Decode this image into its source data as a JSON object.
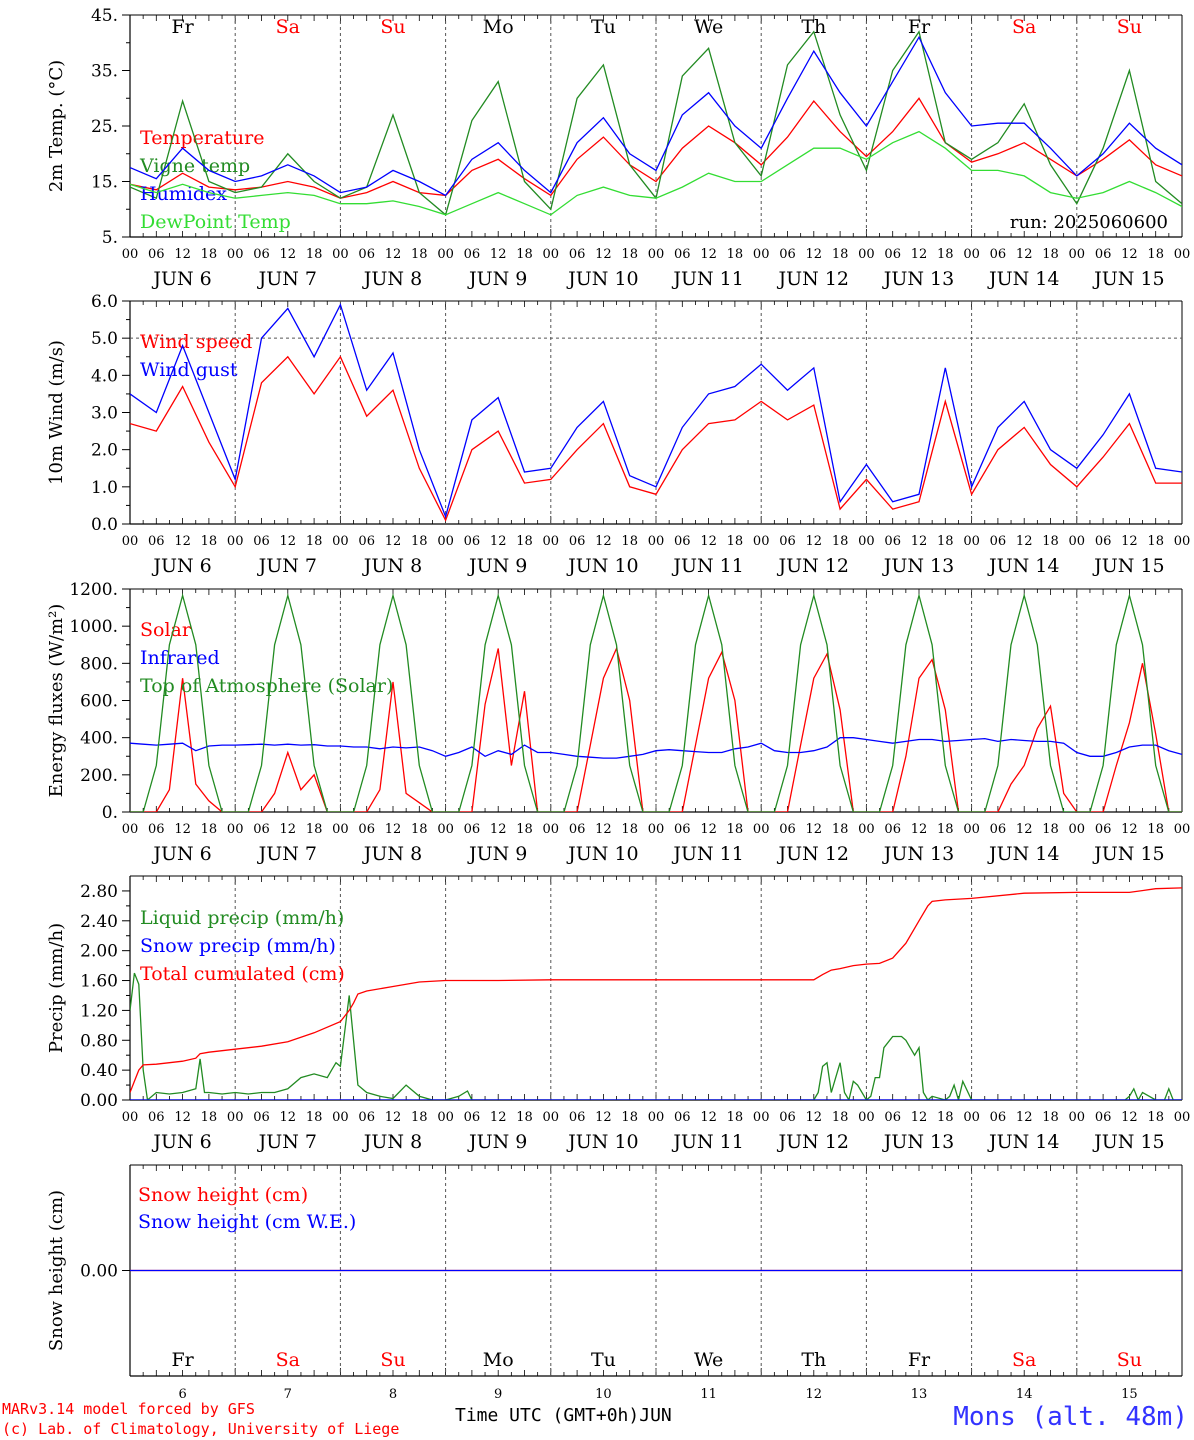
{
  "footer": {
    "model_line": "MARv3.14 model forced by GFS",
    "copyright_line": "(c) Lab. of Climatology, University of Liege",
    "time_axis_label": "Time UTC (GMT+0h)",
    "month_label": "JUN",
    "station": "Mons (alt. 48m)"
  },
  "run_label": "run: 2025060600",
  "colors": {
    "red": "#ff0000",
    "green": "#228b22",
    "blue": "#0000ff",
    "lightgreen": "#33dd33",
    "black": "#000000"
  },
  "time_axis": {
    "hour_ticks": [
      "00",
      "06",
      "12",
      "18"
    ],
    "end_tick": "00",
    "day_labels": [
      "JUN  6",
      "JUN  7",
      "JUN  8",
      "JUN  9",
      "JUN 10",
      "JUN 11",
      "JUN 12",
      "JUN 13",
      "JUN 14",
      "JUN 15"
    ],
    "weekdays": [
      "Fr",
      "Sa",
      "Su",
      "Mo",
      "Tu",
      "We",
      "Th",
      "Fr",
      "Sa",
      "Su"
    ],
    "weekend_flags": [
      false,
      true,
      true,
      false,
      false,
      false,
      false,
      false,
      true,
      true
    ],
    "day_numbers": [
      "6",
      "7",
      "8",
      "9",
      "10",
      "11",
      "12",
      "13",
      "14",
      "15"
    ]
  },
  "chart_data": [
    {
      "type": "line",
      "ylabel": "2m Temp. (°C)",
      "ylim": [
        5,
        45
      ],
      "ytick_values": [
        5,
        15,
        25,
        35,
        45
      ],
      "ytick_labels": [
        "5.",
        "15.",
        "25.",
        "35.",
        "45."
      ],
      "x_hours": [
        0,
        6,
        12,
        18,
        24,
        30,
        36,
        42,
        48,
        54,
        60,
        66,
        72,
        78,
        84,
        90,
        96,
        102,
        108,
        114,
        120,
        126,
        132,
        138,
        144,
        150,
        156,
        162,
        168,
        174,
        180,
        186,
        192,
        198,
        204,
        210,
        216,
        222,
        228,
        234,
        240
      ],
      "series": [
        {
          "name": "Temperature",
          "color": "red",
          "values": [
            14.5,
            13.5,
            16.5,
            14,
            13.5,
            14,
            15,
            14,
            12,
            13,
            15,
            13,
            12.5,
            17,
            19,
            15.5,
            12.5,
            19,
            23,
            18,
            15,
            21,
            25,
            22,
            18,
            23,
            29.5,
            24,
            19.5,
            24,
            30,
            22,
            18.5,
            20,
            22,
            19,
            16,
            19,
            22.5,
            18,
            16
          ]
        },
        {
          "name": "Vigne temp",
          "color": "green",
          "values": [
            14,
            12,
            29.5,
            15,
            13,
            14,
            20,
            15,
            12,
            14,
            27,
            13,
            9,
            26,
            33,
            15,
            10,
            30,
            36,
            18,
            12,
            34,
            39,
            22,
            16,
            36,
            42,
            27,
            17,
            35,
            42,
            22,
            19,
            22,
            29,
            18,
            11,
            21,
            35,
            15,
            11
          ]
        },
        {
          "name": "Humidex",
          "color": "blue",
          "values": [
            17.5,
            15.5,
            21,
            17,
            15,
            16,
            18,
            16,
            13,
            14,
            17,
            15,
            12.5,
            19,
            22,
            17,
            13,
            22,
            26.5,
            20,
            17,
            27,
            31,
            25,
            21,
            30,
            38.5,
            31,
            25,
            33,
            41,
            31,
            25,
            25.5,
            25.5,
            21,
            16,
            20,
            25.5,
            21,
            18
          ]
        },
        {
          "name": "DewPoint Temp",
          "color": "lightgreen",
          "values": [
            14.5,
            13,
            14.5,
            13,
            12,
            12.5,
            13,
            12.5,
            11,
            11,
            11.5,
            10.5,
            9,
            11,
            13,
            11,
            9,
            12.5,
            14,
            12.5,
            12,
            14,
            16.5,
            15,
            15,
            18,
            21,
            21,
            19,
            22,
            24,
            21,
            17,
            17,
            16,
            13,
            12,
            13,
            15,
            13,
            10.5
          ]
        }
      ]
    },
    {
      "type": "line",
      "ylabel": "10m Wind (m/s)",
      "ylim": [
        0,
        6
      ],
      "ytick_values": [
        0,
        1,
        2,
        3,
        4,
        5,
        6
      ],
      "ytick_labels": [
        "0.0",
        "1.0",
        "2.0",
        "3.0",
        "4.0",
        "5.0",
        "6.0"
      ],
      "reference_line": 5,
      "x_hours": [
        0,
        6,
        12,
        18,
        24,
        30,
        36,
        42,
        48,
        54,
        60,
        66,
        72,
        78,
        84,
        90,
        96,
        102,
        108,
        114,
        120,
        126,
        132,
        138,
        144,
        150,
        156,
        162,
        168,
        174,
        180,
        186,
        192,
        198,
        204,
        210,
        216,
        222,
        228,
        234,
        240
      ],
      "series": [
        {
          "name": "Wind speed",
          "color": "red",
          "values": [
            2.7,
            2.5,
            3.7,
            2.2,
            1.0,
            3.8,
            4.5,
            3.5,
            4.5,
            2.9,
            3.6,
            1.5,
            0.1,
            2.0,
            2.5,
            1.1,
            1.2,
            2.0,
            2.7,
            1.0,
            0.8,
            2.0,
            2.7,
            2.8,
            3.3,
            2.8,
            3.2,
            0.4,
            1.2,
            0.4,
            0.6,
            3.3,
            0.8,
            2.0,
            2.6,
            1.6,
            1.0,
            1.8,
            2.7,
            1.1,
            1.1
          ]
        },
        {
          "name": "Wind gust",
          "color": "blue",
          "values": [
            3.5,
            3.0,
            4.8,
            3.0,
            1.2,
            5.0,
            5.8,
            4.5,
            5.9,
            3.6,
            4.6,
            2.0,
            0.2,
            2.8,
            3.4,
            1.4,
            1.5,
            2.6,
            3.3,
            1.3,
            1.0,
            2.6,
            3.5,
            3.7,
            4.3,
            3.6,
            4.2,
            0.6,
            1.6,
            0.6,
            0.8,
            4.2,
            1.0,
            2.6,
            3.3,
            2.0,
            1.5,
            2.4,
            3.5,
            1.5,
            1.4
          ]
        }
      ]
    },
    {
      "type": "line",
      "ylabel": "Energy fluxes (W/m²)",
      "ylim": [
        0,
        1200
      ],
      "ytick_values": [
        0,
        200,
        400,
        600,
        800,
        1000,
        1200
      ],
      "ytick_labels": [
        "0.",
        "200.",
        "400.",
        "600.",
        "800.",
        "1000.",
        "1200."
      ],
      "x_hours": [
        0,
        3,
        6,
        9,
        12,
        15,
        18,
        21,
        24,
        27,
        30,
        33,
        36,
        39,
        42,
        45,
        48,
        51,
        54,
        57,
        60,
        63,
        66,
        69,
        72,
        75,
        78,
        81,
        84,
        87,
        90,
        93,
        96,
        99,
        102,
        105,
        108,
        111,
        114,
        117,
        120,
        123,
        126,
        129,
        132,
        135,
        138,
        141,
        144,
        147,
        150,
        153,
        156,
        159,
        162,
        165,
        168,
        171,
        174,
        177,
        180,
        183,
        186,
        189,
        192,
        195,
        198,
        201,
        204,
        207,
        210,
        213,
        216,
        219,
        222,
        225,
        228,
        231,
        234,
        237,
        240
      ],
      "series": [
        {
          "name": "Solar",
          "color": "red",
          "values": [
            0,
            0,
            0,
            120,
            720,
            150,
            60,
            0,
            0,
            0,
            0,
            100,
            320,
            120,
            200,
            0,
            0,
            0,
            0,
            120,
            700,
            100,
            50,
            0,
            0,
            0,
            0,
            580,
            880,
            250,
            650,
            0,
            0,
            0,
            0,
            360,
            720,
            880,
            600,
            0,
            0,
            0,
            0,
            360,
            720,
            860,
            600,
            0,
            0,
            0,
            0,
            360,
            720,
            850,
            550,
            0,
            0,
            0,
            0,
            300,
            720,
            820,
            550,
            0,
            0,
            0,
            0,
            150,
            250,
            450,
            570,
            100,
            0,
            0,
            0,
            250,
            480,
            800,
            420,
            0,
            0
          ]
        },
        {
          "name": "Infrared",
          "color": "blue",
          "values": [
            370,
            365,
            360,
            365,
            370,
            330,
            355,
            360,
            360,
            362,
            365,
            360,
            365,
            360,
            362,
            355,
            355,
            350,
            350,
            340,
            350,
            345,
            350,
            330,
            300,
            320,
            350,
            300,
            330,
            310,
            360,
            320,
            320,
            310,
            300,
            295,
            290,
            290,
            300,
            310,
            330,
            335,
            330,
            325,
            320,
            320,
            340,
            350,
            370,
            330,
            320,
            320,
            330,
            350,
            400,
            400,
            390,
            380,
            370,
            380,
            390,
            390,
            380,
            385,
            390,
            395,
            380,
            390,
            385,
            380,
            380,
            370,
            320,
            300,
            300,
            320,
            350,
            360,
            360,
            330,
            310
          ]
        },
        {
          "name": "Top of Atmosphere (Solar)",
          "color": "green",
          "values": [
            0,
            0,
            250,
            900,
            1165,
            900,
            250,
            0,
            0,
            0,
            250,
            900,
            1165,
            900,
            250,
            0,
            0,
            0,
            250,
            900,
            1165,
            900,
            250,
            0,
            0,
            0,
            250,
            900,
            1165,
            900,
            250,
            0,
            0,
            0,
            250,
            900,
            1165,
            900,
            250,
            0,
            0,
            0,
            250,
            900,
            1165,
            900,
            250,
            0,
            0,
            0,
            250,
            900,
            1165,
            900,
            250,
            0,
            0,
            0,
            250,
            900,
            1165,
            900,
            250,
            0,
            0,
            0,
            250,
            900,
            1165,
            900,
            250,
            0,
            0,
            0,
            250,
            900,
            1165,
            900,
            250,
            0,
            0
          ]
        }
      ]
    },
    {
      "type": "line",
      "ylabel": "Precip (mm/h)",
      "ylim": [
        0,
        3.0
      ],
      "ytick_values": [
        0,
        0.4,
        0.8,
        1.2,
        1.6,
        2.0,
        2.4,
        2.8
      ],
      "ytick_labels": [
        "0.00",
        "0.40",
        "0.80",
        "1.20",
        "1.60",
        "2.00",
        "2.40",
        "2.80"
      ],
      "series": [
        {
          "name": "Liquid precip (mm/h)",
          "color": "green",
          "x_hours": [
            0,
            1,
            2,
            3,
            4,
            6,
            9,
            12,
            15,
            16,
            17,
            18,
            21,
            24,
            27,
            30,
            33,
            36,
            39,
            42,
            45,
            46,
            47,
            48,
            50,
            52,
            54,
            57,
            60,
            63,
            66,
            69,
            72,
            75,
            77,
            78,
            79,
            80,
            84,
            96,
            120,
            144,
            156,
            157,
            158,
            159,
            160,
            161,
            162,
            163,
            164,
            165,
            166,
            168,
            169,
            170,
            171,
            172,
            174,
            176,
            177,
            178,
            179,
            180,
            181,
            182,
            183,
            186,
            187,
            188,
            189,
            190,
            192,
            195,
            198,
            210,
            222,
            227,
            228,
            229,
            230,
            231,
            234,
            235,
            236,
            237,
            238,
            240
          ],
          "values": [
            1.2,
            1.7,
            1.55,
            0.4,
            0,
            0.1,
            0.08,
            0.1,
            0.15,
            0.55,
            0.1,
            0.1,
            0.08,
            0.1,
            0.08,
            0.1,
            0.1,
            0.15,
            0.3,
            0.35,
            0.3,
            0.4,
            0.5,
            0.45,
            1.4,
            0.2,
            0.1,
            0.05,
            0.02,
            0.2,
            0.05,
            0.0,
            0,
            0.05,
            0.12,
            0,
            0,
            0,
            0,
            0,
            0,
            0,
            0,
            0.1,
            0.45,
            0.5,
            0.1,
            0.3,
            0.5,
            0.1,
            0,
            0.25,
            0.2,
            0,
            0.05,
            0.3,
            0.3,
            0.7,
            0.85,
            0.85,
            0.8,
            0.7,
            0.6,
            0.7,
            0.1,
            0,
            0.05,
            0,
            0.05,
            0.2,
            0,
            0.25,
            0,
            0,
            0,
            0,
            0,
            0,
            0.05,
            0.15,
            0,
            0.1,
            0,
            0,
            0,
            0.15,
            0,
            0
          ]
        },
        {
          "name": "Snow precip (mm/h)",
          "color": "blue",
          "x_hours": [
            0,
            240
          ],
          "values": [
            0,
            0
          ]
        },
        {
          "name": "Total cumulated (cm)",
          "color": "red",
          "x_hours": [
            0,
            1,
            2,
            3,
            6,
            12,
            15,
            16,
            18,
            24,
            30,
            36,
            42,
            48,
            50,
            51,
            52,
            54,
            60,
            66,
            72,
            84,
            96,
            120,
            144,
            156,
            158,
            160,
            162,
            165,
            168,
            171,
            174,
            177,
            180,
            182,
            183,
            186,
            192,
            204,
            216,
            228,
            234,
            240
          ],
          "values": [
            0.1,
            0.25,
            0.4,
            0.47,
            0.48,
            0.52,
            0.56,
            0.62,
            0.64,
            0.68,
            0.72,
            0.78,
            0.9,
            1.05,
            1.2,
            1.3,
            1.42,
            1.46,
            1.52,
            1.58,
            1.6,
            1.6,
            1.61,
            1.61,
            1.61,
            1.61,
            1.68,
            1.74,
            1.76,
            1.8,
            1.82,
            1.83,
            1.9,
            2.1,
            2.4,
            2.6,
            2.66,
            2.68,
            2.7,
            2.77,
            2.78,
            2.78,
            2.83,
            2.84
          ]
        }
      ]
    },
    {
      "type": "line",
      "ylabel": "Snow height (cm)",
      "ytick_values": [
        0
      ],
      "ytick_labels": [
        "0.00"
      ],
      "series": [
        {
          "name": "Snow height (cm)",
          "color": "red",
          "x_hours": [
            0,
            240
          ],
          "values": [
            0,
            0
          ]
        },
        {
          "name": "Snow height (cm W.E.)",
          "color": "blue",
          "x_hours": [
            0,
            240
          ],
          "values": [
            0,
            0
          ]
        }
      ]
    }
  ]
}
